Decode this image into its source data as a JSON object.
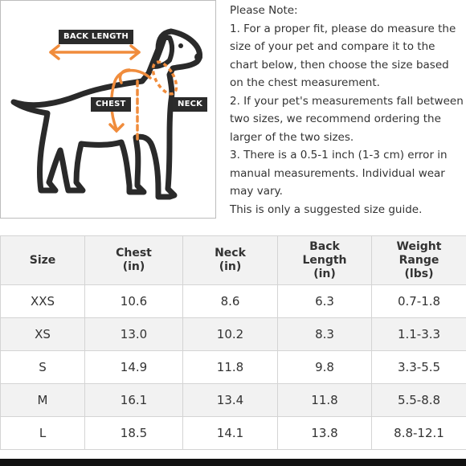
{
  "diagram": {
    "labels": {
      "back_length": "BACK LENGTH",
      "chest": "CHEST",
      "neck": "NECK"
    },
    "colors": {
      "arrow": "#f08c3c",
      "outline": "#2a2a2a",
      "tag": "#2b2b2b"
    }
  },
  "notes": {
    "heading": "Please Note:",
    "item1": "1. For a proper fit, please do measure the size of your pet and compare it to the chart below, then choose the size based on the chest measurement.",
    "item2": "2. If your pet's measurements fall between two sizes, we recommend ordering the larger of the two sizes.",
    "item3": "3. There is a 0.5-1 inch (1-3 cm) error in manual measurements. Individual wear may vary.",
    "footer": "This is only a suggested size guide."
  },
  "table": {
    "headers": [
      [
        "Size"
      ],
      [
        "Chest",
        "(in)"
      ],
      [
        "Neck",
        "(in)"
      ],
      [
        "Back",
        "Length",
        "(in)"
      ],
      [
        "Weight",
        "Range",
        "(lbs)"
      ]
    ],
    "rows": [
      [
        "XXS",
        "10.6",
        "8.6",
        "6.3",
        "0.7-1.8"
      ],
      [
        "XS",
        "13.0",
        "10.2",
        "8.3",
        "1.1-3.3"
      ],
      [
        "S",
        "14.9",
        "11.8",
        "9.8",
        "3.3-5.5"
      ],
      [
        "M",
        "16.1",
        "13.4",
        "11.8",
        "5.5-8.8"
      ],
      [
        "L",
        "18.5",
        "14.1",
        "13.8",
        "8.8-12.1"
      ]
    ]
  }
}
